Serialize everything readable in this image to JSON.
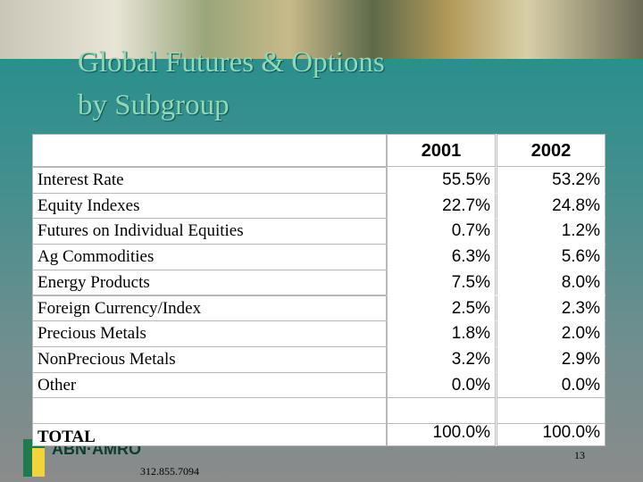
{
  "title": {
    "lines": [
      "Global Futures & Options",
      "by Subgroup"
    ]
  },
  "table": {
    "columns": [
      "2001",
      "2002"
    ],
    "rows": [
      {
        "label": "Interest Rate",
        "values": [
          "55.5%",
          "53.2%"
        ]
      },
      {
        "label": "Equity Indexes",
        "values": [
          "22.7%",
          "24.8%"
        ]
      },
      {
        "label": "Futures on Individual Equities",
        "values": [
          "0.7%",
          "1.2%"
        ]
      },
      {
        "label": "Ag Commodities",
        "values": [
          "6.3%",
          "5.6%"
        ]
      },
      {
        "label": "Energy Products",
        "values": [
          "7.5%",
          "8.0%"
        ]
      },
      {
        "label": "Foreign Currency/Index",
        "values": [
          "2.5%",
          "2.3%"
        ]
      },
      {
        "label": "Precious Metals",
        "values": [
          "1.8%",
          "2.0%"
        ]
      },
      {
        "label": "NonPrecious Metals",
        "values": [
          "3.2%",
          "2.9%"
        ]
      },
      {
        "label": "Other",
        "values": [
          "0.0%",
          "0.0%"
        ]
      }
    ],
    "total": {
      "label": "TOTAL",
      "values": [
        "100.0%",
        "100.0%"
      ]
    }
  },
  "footer": {
    "logo": "ABN·AMRO",
    "phone": "312.855.7094",
    "page": "13"
  }
}
